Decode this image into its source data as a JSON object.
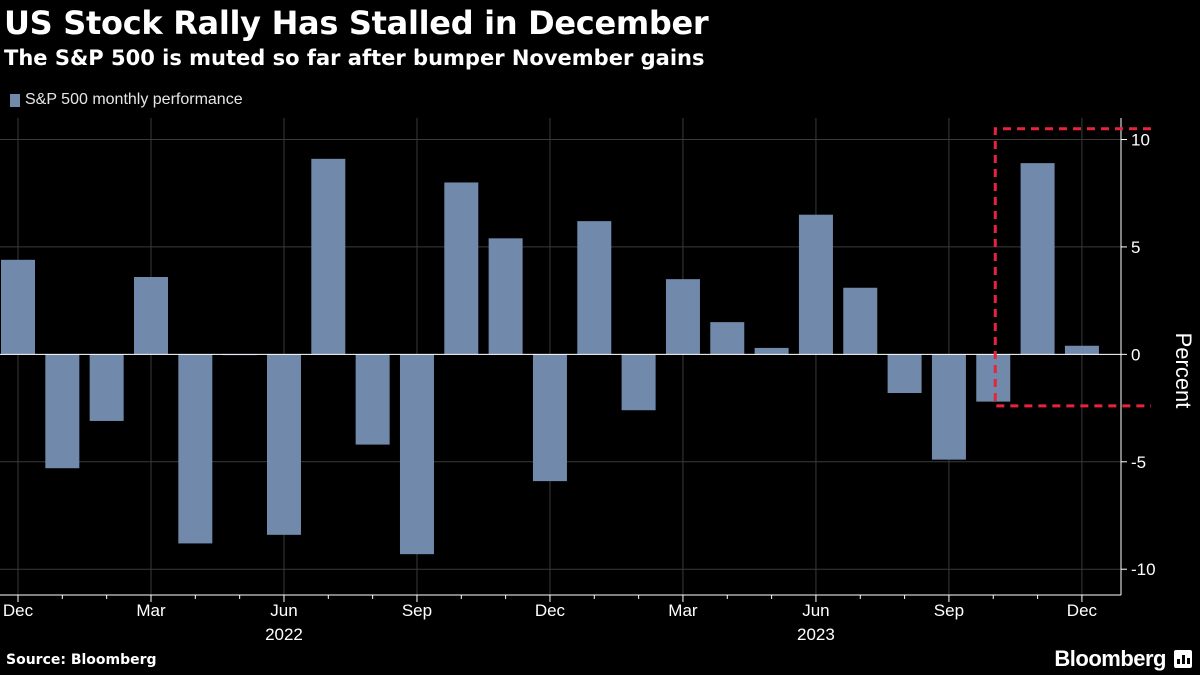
{
  "header": {
    "title": "US Stock Rally Has Stalled in December",
    "subtitle": "The S&P 500 is muted so far after bumper November gains"
  },
  "footer": {
    "source": "Source: Bloomberg",
    "brand": "Bloomberg"
  },
  "colors": {
    "bar": "#7189ab",
    "highlight": "#e8243c",
    "grid": "#3a3a3a",
    "axis": "#ffffff",
    "text": "#ffffff"
  },
  "chart_data": {
    "type": "bar",
    "title": "US Stock Rally Has Stalled in December",
    "subtitle": "The S&P 500 is muted so far after bumper November gains",
    "ylabel": "Percent",
    "xlabel": "",
    "ylim": [
      -11.2,
      11.0
    ],
    "yticks": [
      10,
      5,
      0,
      -5,
      -10
    ],
    "legend": [
      {
        "name": "S&P 500 monthly performance",
        "color": "#7189ab"
      }
    ],
    "legend_position": "top-left",
    "categories": [
      "Dec 2021",
      "Jan 2022",
      "Feb 2022",
      "Mar 2022",
      "Apr 2022",
      "May 2022",
      "Jun 2022",
      "Jul 2022",
      "Aug 2022",
      "Sep 2022",
      "Oct 2022",
      "Nov 2022",
      "Dec 2022",
      "Jan 2023",
      "Feb 2023",
      "Mar 2023",
      "Apr 2023",
      "May 2023",
      "Jun 2023",
      "Jul 2023",
      "Aug 2023",
      "Sep 2023",
      "Oct 2023",
      "Nov 2023",
      "Dec 2023"
    ],
    "series": [
      {
        "name": "S&P 500 monthly performance",
        "values": [
          4.4,
          -5.3,
          -3.1,
          3.6,
          -8.8,
          0.01,
          -8.4,
          9.1,
          -4.2,
          -9.3,
          8.0,
          5.4,
          -5.9,
          6.2,
          -2.6,
          3.5,
          1.5,
          0.3,
          6.5,
          3.1,
          -1.8,
          -4.9,
          -2.2,
          8.9,
          0.4
        ]
      }
    ],
    "x_tick_labels": [
      {
        "label": "Dec",
        "index": 0
      },
      {
        "label": "Mar",
        "index": 3
      },
      {
        "label": "Jun",
        "index": 6
      },
      {
        "label": "Sep",
        "index": 9
      },
      {
        "label": "Dec",
        "index": 12
      },
      {
        "label": "Mar",
        "index": 15
      },
      {
        "label": "Jun",
        "index": 18
      },
      {
        "label": "Sep",
        "index": 21
      },
      {
        "label": "Dec",
        "index": 24
      }
    ],
    "year_labels": [
      {
        "label": "2022",
        "index": 6
      },
      {
        "label": "2023",
        "index": 18
      }
    ],
    "highlight_box": {
      "from_index": 22,
      "to_index": 24,
      "ymin": -2.4,
      "ymax": 10.5
    }
  }
}
